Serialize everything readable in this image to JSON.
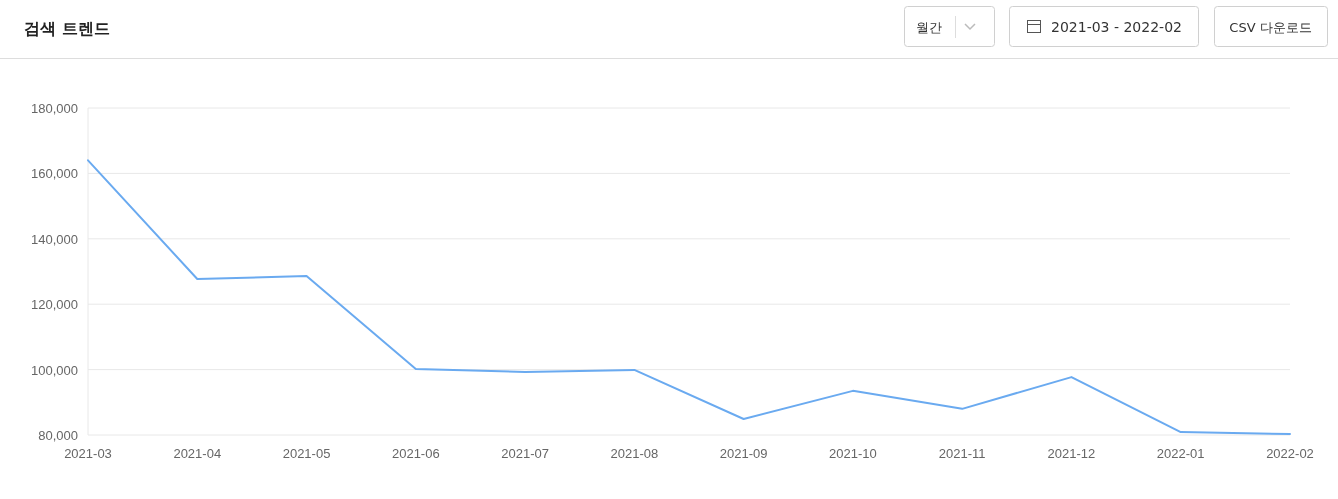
{
  "chart_data": {
    "type": "line",
    "title": "검색 트렌드",
    "annotations": [
      "월간",
      "2021-03 - 2022-02",
      "CSV 다운로드"
    ],
    "categories": [
      "2021-03",
      "2021-04",
      "2021-05",
      "2021-06",
      "2021-07",
      "2021-08",
      "2021-09",
      "2021-10",
      "2021-11",
      "2021-12",
      "2022-01",
      "2022-02"
    ],
    "series": [
      {
        "color": "#6aaaf0",
        "values": [
          164000,
          127700,
          128600,
          100200,
          99300,
          99900,
          84900,
          93500,
          88000,
          97700,
          80900,
          80300
        ]
      }
    ],
    "ylim": [
      80000,
      180000
    ],
    "yticks": [
      {
        "value": 80000,
        "label": "80,000"
      },
      {
        "value": 100000,
        "label": "100,000"
      },
      {
        "value": 120000,
        "label": "120,000"
      },
      {
        "value": 140000,
        "label": "140,000"
      },
      {
        "value": 160000,
        "label": "160,000"
      },
      {
        "value": 180000,
        "label": "180,000"
      }
    ],
    "grid": "y",
    "marker": "none",
    "line_style": "solid"
  }
}
